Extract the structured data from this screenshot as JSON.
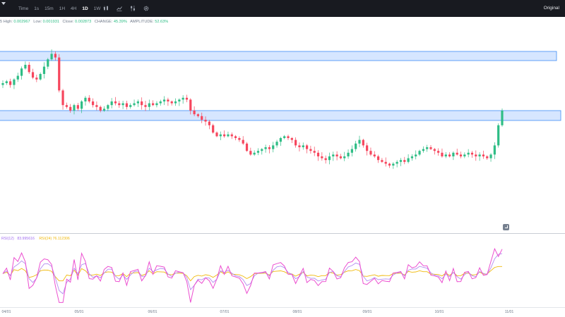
{
  "toolbar": {
    "intervals": [
      "Time",
      "1s",
      "15m",
      "1H",
      "4H",
      "1D",
      "1W"
    ],
    "active_interval": "1D",
    "dropdown_icon": "chevron-down-icon",
    "tools": [
      "candle-type-icon",
      "indicator-icon",
      "settings-sliders-icon",
      "gear-icon"
    ],
    "view_label": "Original"
  },
  "ohlc": {
    "prefix": "5",
    "high_label": "High:",
    "high": "0.002967",
    "low_label": "Low:",
    "low": "0.001931",
    "close_label": "Close:",
    "close": "0.002873",
    "change_label": "CHANGE:",
    "change": "45.39%",
    "amplitude_label": "AMPLITUDE:",
    "amplitude": "52.63%"
  },
  "indicator": {
    "rsi_prefix": "RSI(12)",
    "rsi_value_text": "83.995616",
    "ma_label": "RSI(24)",
    "ma_value": "76.112306"
  },
  "colors": {
    "up": "#2ebd85",
    "down": "#f6465d",
    "zone_fill": "#cfe2ff",
    "zone_stroke": "#3f8ef5",
    "rsi_pink": "#ec4fd0",
    "rsi_violet": "#b38cf0",
    "rsi_orange": "#f0b90b"
  },
  "x_labels": [
    "04/01",
    "05/01",
    "06/01",
    "07/01",
    "08/01",
    "09/01",
    "10/01",
    "11/01"
  ],
  "chart_data": {
    "type": "candlestick",
    "zones": [
      {
        "name": "upper resistance zone"
      },
      {
        "name": "lower resistance zone"
      }
    ],
    "candles_close_profile": [
      0.7,
      0.71,
      0.69,
      0.72,
      0.74,
      0.78,
      0.8,
      0.76,
      0.73,
      0.72,
      0.75,
      0.79,
      0.83,
      0.86,
      0.84,
      0.66,
      0.58,
      0.57,
      0.55,
      0.58,
      0.56,
      0.6,
      0.62,
      0.6,
      0.58,
      0.57,
      0.55,
      0.56,
      0.58,
      0.6,
      0.59,
      0.58,
      0.59,
      0.57,
      0.58,
      0.59,
      0.6,
      0.58,
      0.57,
      0.59,
      0.58,
      0.59,
      0.6,
      0.61,
      0.6,
      0.59,
      0.6,
      0.61,
      0.62,
      0.61,
      0.55,
      0.53,
      0.52,
      0.5,
      0.49,
      0.47,
      0.43,
      0.41,
      0.42,
      0.41,
      0.42,
      0.41,
      0.4,
      0.39,
      0.37,
      0.33,
      0.31,
      0.32,
      0.33,
      0.34,
      0.35,
      0.34,
      0.36,
      0.38,
      0.4,
      0.41,
      0.4,
      0.39,
      0.36,
      0.35,
      0.36,
      0.34,
      0.33,
      0.32,
      0.3,
      0.29,
      0.28,
      0.3,
      0.31,
      0.3,
      0.29,
      0.3,
      0.32,
      0.34,
      0.37,
      0.39,
      0.36,
      0.33,
      0.31,
      0.3,
      0.28,
      0.27,
      0.26,
      0.25,
      0.26,
      0.27,
      0.28,
      0.27,
      0.29,
      0.3,
      0.31,
      0.33,
      0.34,
      0.35,
      0.34,
      0.33,
      0.32,
      0.3,
      0.31,
      0.3,
      0.32,
      0.31,
      0.3,
      0.31,
      0.32,
      0.31,
      0.3,
      0.31,
      0.3,
      0.29,
      0.31,
      0.36,
      0.47,
      0.55
    ],
    "x_axis_labels": [
      "04/01",
      "05/01",
      "06/01",
      "07/01",
      "08/01",
      "09/01",
      "10/01",
      "11/01"
    ]
  }
}
